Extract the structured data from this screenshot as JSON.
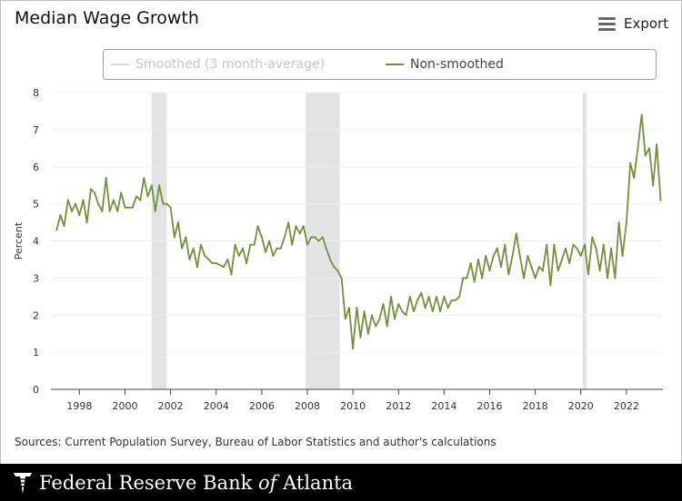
{
  "title": "Median Wage Growth",
  "export_label": "Export",
  "legend": {
    "smoothed": "Smoothed (3 month-average)",
    "raw": "Non-smoothed"
  },
  "source": "Sources: Current Population Survey, Bureau of Labor Statistics and author's calculations",
  "footer": {
    "prefix": "Federal Reserve Bank ",
    "of": "of",
    "suffix": " Atlanta"
  },
  "colors": {
    "series": "#739040",
    "smoothed_disabled": "#d6d6d6",
    "recession": "#e3e3e3",
    "axis_text": "#333333"
  },
  "icons": {
    "export": "hamburger-menu-icon",
    "logo": "federal-reserve-eagle-logo"
  },
  "chart_data": {
    "type": "line",
    "title": "Median Wage Growth",
    "xlabel": "",
    "ylabel": "Percent",
    "xlim": [
      1996.75,
      2023.6
    ],
    "ylim": [
      0,
      8
    ],
    "x_ticks": [
      1998,
      2000,
      2002,
      2004,
      2006,
      2008,
      2010,
      2012,
      2014,
      2016,
      2018,
      2020,
      2022
    ],
    "y_ticks": [
      0,
      1,
      2,
      3,
      4,
      5,
      6,
      7,
      8
    ],
    "grid": "horizontal",
    "legend_position": "top",
    "recessions": [
      [
        2001.17,
        2001.83
      ],
      [
        2007.92,
        2009.42
      ],
      [
        2020.08,
        2020.25
      ]
    ],
    "series": [
      {
        "name": "Smoothed (3 month-average)",
        "visible": false,
        "points": []
      },
      {
        "name": "Non-smoothed",
        "visible": true,
        "points": [
          [
            1997.0,
            4.3
          ],
          [
            1997.17,
            4.7
          ],
          [
            1997.33,
            4.4
          ],
          [
            1997.5,
            5.1
          ],
          [
            1997.67,
            4.8
          ],
          [
            1997.83,
            5.0
          ],
          [
            1998.0,
            4.7
          ],
          [
            1998.17,
            5.1
          ],
          [
            1998.33,
            4.5
          ],
          [
            1998.5,
            5.4
          ],
          [
            1998.67,
            5.3
          ],
          [
            1998.83,
            5.0
          ],
          [
            1999.0,
            4.8
          ],
          [
            1999.17,
            5.7
          ],
          [
            1999.33,
            4.8
          ],
          [
            1999.5,
            5.1
          ],
          [
            1999.67,
            4.8
          ],
          [
            1999.83,
            5.3
          ],
          [
            2000.0,
            4.9
          ],
          [
            2000.33,
            4.9
          ],
          [
            2000.5,
            5.2
          ],
          [
            2000.67,
            5.1
          ],
          [
            2000.83,
            5.7
          ],
          [
            2001.0,
            5.2
          ],
          [
            2001.17,
            5.5
          ],
          [
            2001.33,
            4.8
          ],
          [
            2001.5,
            5.5
          ],
          [
            2001.67,
            5.0
          ],
          [
            2001.83,
            5.0
          ],
          [
            2002.0,
            4.9
          ],
          [
            2002.17,
            4.1
          ],
          [
            2002.33,
            4.5
          ],
          [
            2002.5,
            3.8
          ],
          [
            2002.67,
            4.1
          ],
          [
            2002.83,
            3.5
          ],
          [
            2003.0,
            3.8
          ],
          [
            2003.17,
            3.3
          ],
          [
            2003.33,
            3.9
          ],
          [
            2003.5,
            3.6
          ],
          [
            2003.67,
            3.5
          ],
          [
            2003.83,
            3.4
          ],
          [
            2004.0,
            3.4
          ],
          [
            2004.33,
            3.3
          ],
          [
            2004.5,
            3.5
          ],
          [
            2004.67,
            3.1
          ],
          [
            2004.83,
            3.9
          ],
          [
            2005.0,
            3.6
          ],
          [
            2005.17,
            3.8
          ],
          [
            2005.33,
            3.4
          ],
          [
            2005.5,
            3.9
          ],
          [
            2005.67,
            3.9
          ],
          [
            2005.83,
            4.4
          ],
          [
            2006.0,
            4.1
          ],
          [
            2006.17,
            3.7
          ],
          [
            2006.33,
            4.0
          ],
          [
            2006.5,
            3.6
          ],
          [
            2006.67,
            3.8
          ],
          [
            2006.83,
            3.8
          ],
          [
            2007.0,
            4.1
          ],
          [
            2007.17,
            4.5
          ],
          [
            2007.33,
            3.9
          ],
          [
            2007.5,
            4.4
          ],
          [
            2007.67,
            4.2
          ],
          [
            2007.83,
            4.4
          ],
          [
            2008.0,
            3.9
          ],
          [
            2008.17,
            4.1
          ],
          [
            2008.33,
            4.1
          ],
          [
            2008.5,
            4.0
          ],
          [
            2008.67,
            4.1
          ],
          [
            2008.83,
            3.8
          ],
          [
            2009.0,
            3.5
          ],
          [
            2009.17,
            3.3
          ],
          [
            2009.33,
            3.2
          ],
          [
            2009.5,
            3.0
          ],
          [
            2009.67,
            1.9
          ],
          [
            2009.83,
            2.2
          ],
          [
            2010.0,
            1.1
          ],
          [
            2010.17,
            2.2
          ],
          [
            2010.33,
            1.4
          ],
          [
            2010.5,
            2.1
          ],
          [
            2010.67,
            1.5
          ],
          [
            2010.83,
            2.0
          ],
          [
            2011.0,
            1.7
          ],
          [
            2011.17,
            1.9
          ],
          [
            2011.33,
            2.3
          ],
          [
            2011.5,
            1.7
          ],
          [
            2011.67,
            2.5
          ],
          [
            2011.83,
            1.9
          ],
          [
            2012.0,
            2.3
          ],
          [
            2012.17,
            2.1
          ],
          [
            2012.33,
            2.0
          ],
          [
            2012.5,
            2.5
          ],
          [
            2012.67,
            2.1
          ],
          [
            2012.83,
            2.4
          ],
          [
            2013.0,
            2.6
          ],
          [
            2013.17,
            2.2
          ],
          [
            2013.33,
            2.5
          ],
          [
            2013.5,
            2.1
          ],
          [
            2013.67,
            2.5
          ],
          [
            2013.83,
            2.1
          ],
          [
            2014.0,
            2.5
          ],
          [
            2014.17,
            2.2
          ],
          [
            2014.33,
            2.4
          ],
          [
            2014.5,
            2.4
          ],
          [
            2014.67,
            2.5
          ],
          [
            2014.83,
            3.0
          ],
          [
            2015.0,
            3.0
          ],
          [
            2015.17,
            3.4
          ],
          [
            2015.33,
            2.9
          ],
          [
            2015.5,
            3.5
          ],
          [
            2015.67,
            3.0
          ],
          [
            2015.83,
            3.6
          ],
          [
            2016.0,
            3.2
          ],
          [
            2016.17,
            3.6
          ],
          [
            2016.33,
            3.8
          ],
          [
            2016.5,
            3.3
          ],
          [
            2016.67,
            3.9
          ],
          [
            2016.83,
            3.1
          ],
          [
            2017.0,
            3.6
          ],
          [
            2017.17,
            4.2
          ],
          [
            2017.33,
            3.6
          ],
          [
            2017.5,
            3.0
          ],
          [
            2017.67,
            3.6
          ],
          [
            2017.83,
            3.3
          ],
          [
            2018.0,
            3.0
          ],
          [
            2018.17,
            3.3
          ],
          [
            2018.33,
            3.2
          ],
          [
            2018.5,
            3.9
          ],
          [
            2018.67,
            2.8
          ],
          [
            2018.83,
            3.9
          ],
          [
            2019.0,
            3.2
          ],
          [
            2019.17,
            3.5
          ],
          [
            2019.33,
            3.8
          ],
          [
            2019.5,
            3.4
          ],
          [
            2019.67,
            3.9
          ],
          [
            2019.83,
            3.8
          ],
          [
            2020.0,
            3.6
          ],
          [
            2020.17,
            3.9
          ],
          [
            2020.33,
            3.1
          ],
          [
            2020.5,
            4.1
          ],
          [
            2020.67,
            3.8
          ],
          [
            2020.83,
            3.2
          ],
          [
            2021.0,
            3.9
          ],
          [
            2021.17,
            3.0
          ],
          [
            2021.33,
            3.8
          ],
          [
            2021.5,
            3.0
          ],
          [
            2021.67,
            4.5
          ],
          [
            2021.83,
            3.6
          ],
          [
            2022.0,
            4.5
          ],
          [
            2022.17,
            6.1
          ],
          [
            2022.33,
            5.7
          ],
          [
            2022.5,
            6.5
          ],
          [
            2022.67,
            7.4
          ],
          [
            2022.83,
            6.3
          ],
          [
            2023.0,
            6.5
          ],
          [
            2023.17,
            5.5
          ],
          [
            2023.33,
            6.6
          ],
          [
            2023.5,
            5.1
          ]
        ]
      }
    ]
  }
}
